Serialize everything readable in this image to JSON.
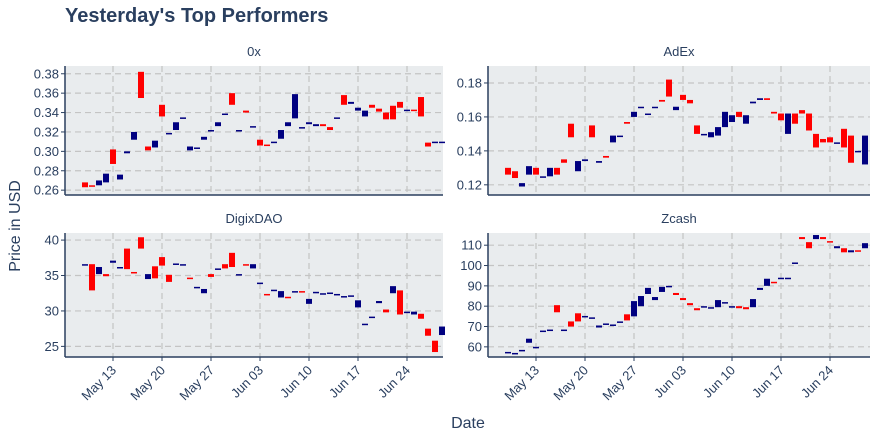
{
  "title": "Yesterday's Top Performers",
  "xlabel": "Date",
  "ylabel": "Price in USD",
  "colors": {
    "up": "#000080",
    "down": "#ff0000",
    "panel_bg": "#e9ecee",
    "grid": "#c4c4c4",
    "axis": "#2a3f5f",
    "text": "#2a3f5f"
  },
  "x_tick_labels": [
    "May 13",
    "May 20",
    "May 27",
    "Jun 03",
    "Jun 10",
    "Jun 17",
    "Jun 24"
  ],
  "chart_data": [
    {
      "type": "candlestick",
      "name": "0x",
      "dates": [
        "May 9",
        "May 10",
        "May 11",
        "May 12",
        "May 13",
        "May 14",
        "May 15",
        "May 16",
        "May 17",
        "May 18",
        "May 19",
        "May 20",
        "May 21",
        "May 22",
        "May 23",
        "May 24",
        "May 25",
        "May 26",
        "May 27",
        "May 28",
        "May 29",
        "May 30",
        "May 31",
        "Jun 1",
        "Jun 2",
        "Jun 3",
        "Jun 4",
        "Jun 5",
        "Jun 6",
        "Jun 7",
        "Jun 8",
        "Jun 9",
        "Jun 10",
        "Jun 11",
        "Jun 12",
        "Jun 13",
        "Jun 14",
        "Jun 15",
        "Jun 16",
        "Jun 17",
        "Jun 18",
        "Jun 19",
        "Jun 20",
        "Jun 21",
        "Jun 22",
        "Jun 23",
        "Jun 24",
        "Jun 25",
        "Jun 26",
        "Jun 27",
        "Jun 28",
        "Jun 29"
      ],
      "open": [
        0.268,
        0.265,
        0.265,
        0.268,
        0.302,
        0.271,
        0.298,
        0.312,
        0.382,
        0.305,
        0.304,
        0.348,
        0.318,
        0.322,
        0.334,
        0.301,
        0.303,
        0.312,
        0.322,
        0.326,
        0.338,
        0.36,
        0.321,
        0.342,
        0.325,
        0.312,
        0.307,
        0.31,
        0.313,
        0.326,
        0.334,
        0.324,
        0.328,
        0.326,
        0.328,
        0.325,
        0.335,
        0.358,
        0.349,
        0.342,
        0.336,
        0.348,
        0.344,
        0.34,
        0.347,
        0.351,
        0.343,
        0.343,
        0.356,
        0.309,
        0.31,
        0.31
      ],
      "close": [
        0.263,
        0.264,
        0.27,
        0.277,
        0.287,
        0.276,
        0.3,
        0.32,
        0.355,
        0.301,
        0.311,
        0.336,
        0.319,
        0.33,
        0.335,
        0.305,
        0.304,
        0.315,
        0.322,
        0.33,
        0.339,
        0.348,
        0.322,
        0.34,
        0.326,
        0.306,
        0.306,
        0.31,
        0.322,
        0.33,
        0.359,
        0.325,
        0.33,
        0.328,
        0.326,
        0.322,
        0.335,
        0.348,
        0.351,
        0.345,
        0.342,
        0.345,
        0.341,
        0.333,
        0.333,
        0.345,
        0.343,
        0.342,
        0.336,
        0.305,
        0.31,
        0.31
      ]
    },
    {
      "type": "candlestick",
      "name": "AdEx",
      "dates": [
        "May 9",
        "May 10",
        "May 11",
        "May 12",
        "May 13",
        "May 14",
        "May 15",
        "May 16",
        "May 17",
        "May 18",
        "May 19",
        "May 20",
        "May 21",
        "May 22",
        "May 23",
        "May 24",
        "May 25",
        "May 26",
        "May 27",
        "May 28",
        "May 29",
        "May 30",
        "May 31",
        "Jun 1",
        "Jun 2",
        "Jun 3",
        "Jun 4",
        "Jun 5",
        "Jun 6",
        "Jun 7",
        "Jun 8",
        "Jun 9",
        "Jun 10",
        "Jun 11",
        "Jun 12",
        "Jun 13",
        "Jun 14",
        "Jun 15",
        "Jun 16",
        "Jun 17",
        "Jun 18",
        "Jun 19",
        "Jun 20",
        "Jun 21",
        "Jun 22",
        "Jun 23",
        "Jun 24",
        "Jun 25",
        "Jun 26",
        "Jun 27",
        "Jun 28",
        "Jun 29"
      ],
      "open": [
        0.13,
        0.128,
        0.119,
        0.126,
        0.13,
        0.125,
        0.125,
        0.13,
        0.135,
        0.156,
        0.128,
        0.134,
        0.155,
        0.133,
        0.137,
        0.145,
        0.149,
        0.157,
        0.16,
        0.166,
        0.162,
        0.166,
        0.17,
        0.182,
        0.164,
        0.173,
        0.17,
        0.155,
        0.15,
        0.148,
        0.149,
        0.154,
        0.157,
        0.163,
        0.156,
        0.168,
        0.17,
        0.171,
        0.163,
        0.162,
        0.15,
        0.162,
        0.164,
        0.162,
        0.15,
        0.147,
        0.148,
        0.145,
        0.153,
        0.149,
        0.14,
        0.132
      ],
      "close": [
        0.126,
        0.124,
        0.121,
        0.131,
        0.126,
        0.125,
        0.13,
        0.126,
        0.133,
        0.148,
        0.134,
        0.135,
        0.148,
        0.134,
        0.136,
        0.149,
        0.149,
        0.156,
        0.163,
        0.166,
        0.162,
        0.166,
        0.169,
        0.172,
        0.166,
        0.17,
        0.168,
        0.15,
        0.15,
        0.151,
        0.154,
        0.163,
        0.161,
        0.16,
        0.161,
        0.169,
        0.171,
        0.17,
        0.162,
        0.158,
        0.162,
        0.156,
        0.162,
        0.152,
        0.142,
        0.145,
        0.145,
        0.145,
        0.142,
        0.133,
        0.14,
        0.149
      ]
    },
    {
      "type": "candlestick",
      "name": "DigixDAO",
      "dates": [
        "May 9",
        "May 10",
        "May 11",
        "May 12",
        "May 13",
        "May 14",
        "May 15",
        "May 16",
        "May 17",
        "May 18",
        "May 19",
        "May 20",
        "May 21",
        "May 22",
        "May 23",
        "May 24",
        "May 25",
        "May 26",
        "May 27",
        "May 28",
        "May 29",
        "May 30",
        "May 31",
        "Jun 1",
        "Jun 2",
        "Jun 3",
        "Jun 4",
        "Jun 5",
        "Jun 6",
        "Jun 7",
        "Jun 8",
        "Jun 9",
        "Jun 10",
        "Jun 11",
        "Jun 12",
        "Jun 13",
        "Jun 14",
        "Jun 15",
        "Jun 16",
        "Jun 17",
        "Jun 18",
        "Jun 19",
        "Jun 20",
        "Jun 21",
        "Jun 22",
        "Jun 23",
        "Jun 24",
        "Jun 25",
        "Jun 26",
        "Jun 27",
        "Jun 28",
        "Jun 29"
      ],
      "open": [
        36.6,
        36.6,
        35.2,
        35.2,
        36.8,
        36.2,
        38.8,
        35.5,
        40.4,
        34.5,
        36.3,
        37.6,
        35.1,
        36.7,
        36.6,
        34.7,
        33.4,
        32.5,
        35.2,
        36.0,
        36.6,
        38.2,
        35.2,
        36.6,
        36.0,
        34.0,
        32.4,
        33.0,
        31.9,
        32.0,
        32.8,
        32.8,
        31.0,
        32.7,
        32.5,
        32.6,
        32.4,
        32.1,
        32.2,
        30.5,
        28.2,
        29.2,
        31.1,
        30.2,
        32.5,
        32.9,
        29.9,
        29.5,
        29.6,
        27.5,
        25.8,
        26.6
      ],
      "close": [
        36.6,
        32.9,
        36.2,
        34.9,
        37.1,
        36.2,
        35.9,
        35.4,
        38.8,
        35.2,
        34.6,
        36.4,
        34.1,
        36.7,
        36.6,
        34.5,
        33.4,
        33.1,
        34.8,
        36.0,
        36.0,
        36.2,
        35.2,
        36.4,
        36.6,
        34.0,
        32.2,
        33.0,
        32.8,
        31.8,
        32.8,
        32.7,
        31.7,
        32.7,
        32.5,
        32.6,
        32.4,
        32.1,
        32.2,
        31.5,
        28.2,
        29.2,
        31.4,
        29.8,
        33.5,
        29.5,
        29.9,
        29.9,
        28.9,
        26.5,
        24.2,
        27.8
      ]
    },
    {
      "type": "candlestick",
      "name": "Zcash",
      "dates": [
        "May 9",
        "May 10",
        "May 11",
        "May 12",
        "May 13",
        "May 14",
        "May 15",
        "May 16",
        "May 17",
        "May 18",
        "May 19",
        "May 20",
        "May 21",
        "May 22",
        "May 23",
        "May 24",
        "May 25",
        "May 26",
        "May 27",
        "May 28",
        "May 29",
        "May 30",
        "May 31",
        "Jun 1",
        "Jun 2",
        "Jun 3",
        "Jun 4",
        "Jun 5",
        "Jun 6",
        "Jun 7",
        "Jun 8",
        "Jun 9",
        "Jun 10",
        "Jun 11",
        "Jun 12",
        "Jun 13",
        "Jun 14",
        "Jun 15",
        "Jun 16",
        "Jun 17",
        "Jun 18",
        "Jun 19",
        "Jun 20",
        "Jun 21",
        "Jun 22",
        "Jun 23",
        "Jun 24",
        "Jun 25",
        "Jun 26",
        "Jun 27",
        "Jun 28",
        "Jun 29"
      ],
      "open": [
        57.5,
        57.0,
        58.5,
        62.0,
        60.0,
        68.0,
        68.5,
        80.5,
        68.5,
        72.5,
        76.5,
        74.8,
        74.5,
        69.5,
        71.5,
        71.0,
        72.5,
        76.0,
        75.0,
        80.0,
        86.0,
        83.0,
        87.0,
        90.0,
        86.5,
        84.0,
        81.5,
        79.0,
        79.5,
        79.5,
        79.5,
        82.0,
        80.0,
        80.0,
        79.5,
        79.5,
        88.0,
        90.0,
        92.0,
        93.5,
        94.0,
        101.5,
        114.0,
        111.5,
        113.0,
        114.0,
        112.0,
        108.5,
        108.5,
        106.5,
        107.5,
        108.5
      ],
      "close": [
        57.5,
        57.0,
        58.5,
        64.0,
        60.0,
        68.0,
        68.5,
        77.0,
        68.5,
        70.0,
        72.5,
        75.2,
        74.5,
        70.5,
        71.5,
        71.0,
        72.5,
        73.0,
        82.5,
        85.0,
        89.0,
        84.5,
        89.5,
        90.0,
        85.5,
        83.0,
        80.5,
        78.0,
        80.0,
        79.5,
        83.0,
        82.0,
        80.0,
        79.0,
        78.5,
        83.5,
        89.0,
        93.5,
        91.5,
        94.0,
        94.0,
        101.5,
        113.0,
        108.5,
        115.0,
        113.0,
        111.5,
        109.5,
        106.5,
        107.5,
        107.0,
        111.0
      ]
    }
  ]
}
